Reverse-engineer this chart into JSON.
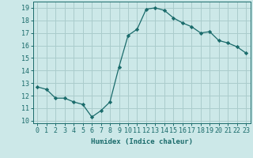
{
  "x": [
    0,
    1,
    2,
    3,
    4,
    5,
    6,
    7,
    8,
    9,
    10,
    11,
    12,
    13,
    14,
    15,
    16,
    17,
    18,
    19,
    20,
    21,
    22,
    23
  ],
  "y": [
    12.7,
    12.5,
    11.8,
    11.8,
    11.5,
    11.3,
    10.3,
    10.8,
    11.5,
    14.3,
    16.8,
    17.3,
    18.9,
    19.0,
    18.8,
    18.2,
    17.8,
    17.5,
    17.0,
    17.1,
    16.4,
    16.2,
    15.9,
    15.4
  ],
  "line_color": "#1a6b6b",
  "marker": "D",
  "marker_size": 2.2,
  "bg_color": "#cce8e8",
  "grid_color": "#aacccc",
  "xlabel": "Humidex (Indice chaleur)",
  "ylim": [
    9.8,
    19.5
  ],
  "xlim": [
    -0.5,
    23.5
  ],
  "yticks": [
    10,
    11,
    12,
    13,
    14,
    15,
    16,
    17,
    18,
    19
  ],
  "xticks": [
    0,
    1,
    2,
    3,
    4,
    5,
    6,
    7,
    8,
    9,
    10,
    11,
    12,
    13,
    14,
    15,
    16,
    17,
    18,
    19,
    20,
    21,
    22,
    23
  ],
  "tick_color": "#1a6b6b",
  "label_fontsize": 6.5,
  "tick_fontsize": 6.0,
  "linewidth": 0.9
}
